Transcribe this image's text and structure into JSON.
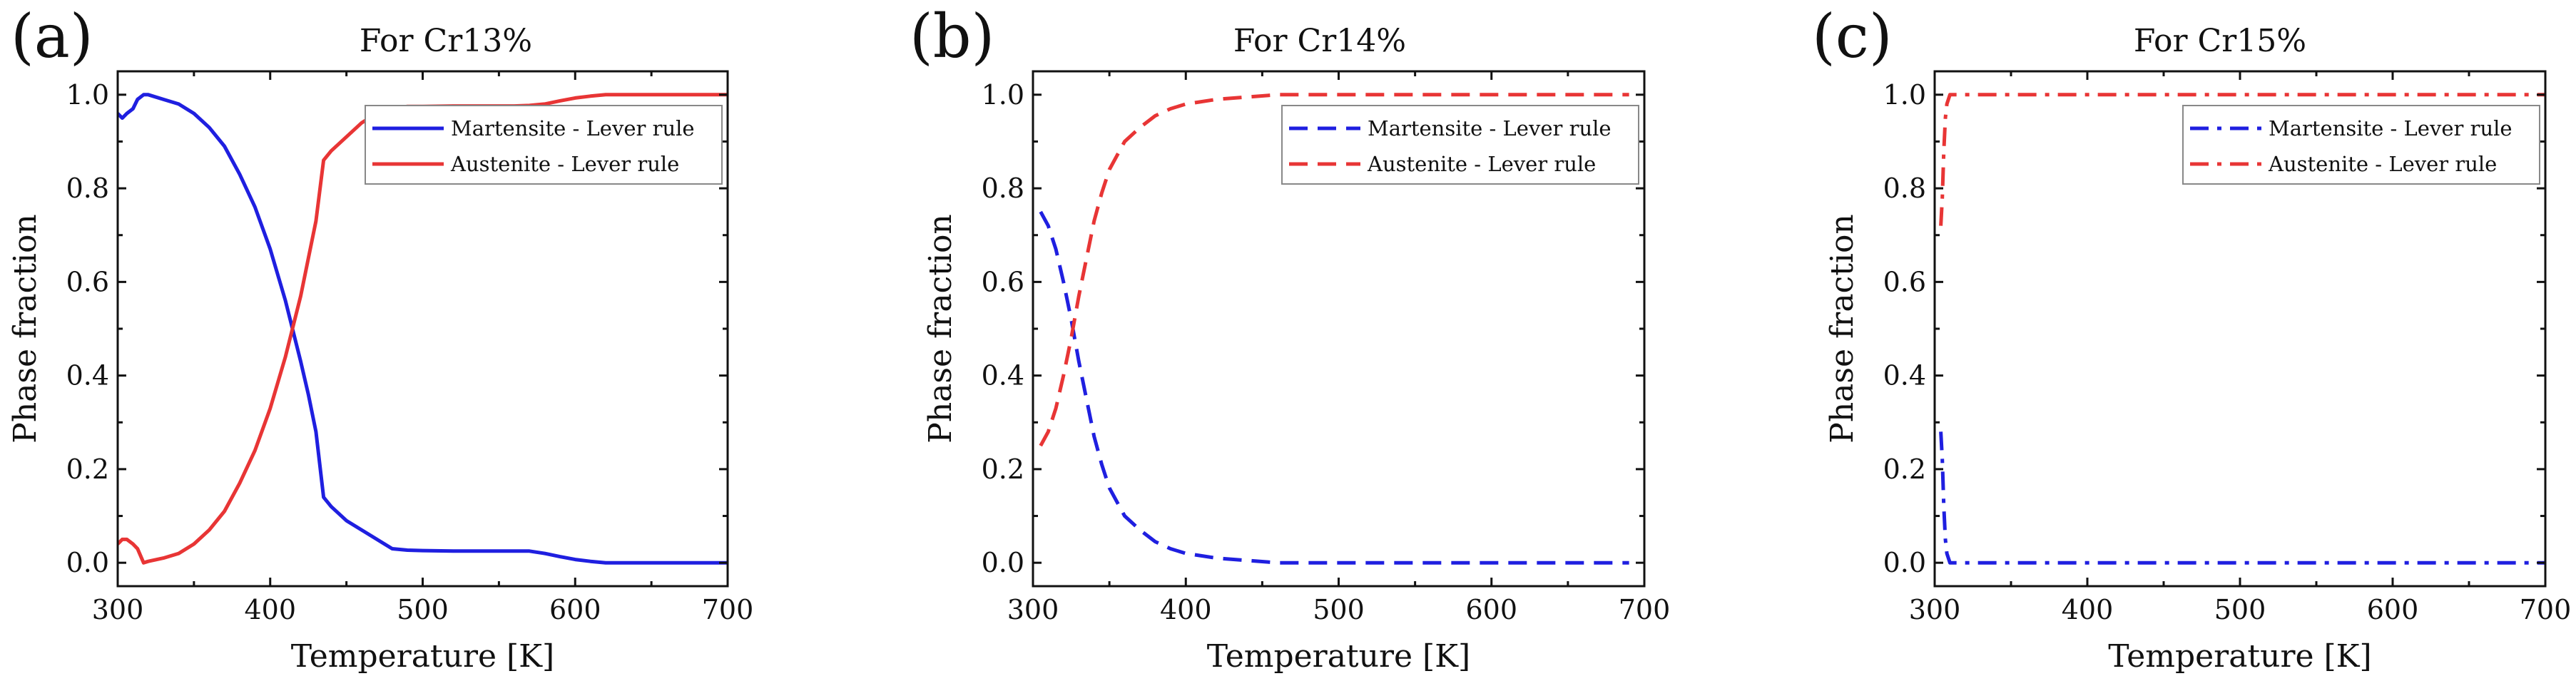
{
  "chart_data": [
    {
      "type": "line",
      "panel": "(a)",
      "title": "For Cr13%",
      "xlabel": "Temperature [K]",
      "ylabel": "Phase fraction",
      "xlim": [
        300,
        700
      ],
      "ylim": [
        -0.05,
        1.05
      ],
      "xticks": [
        300,
        400,
        500,
        600,
        700
      ],
      "yticks": [
        0.0,
        0.2,
        0.4,
        0.6,
        0.8,
        1.0
      ],
      "xtick_labels": [
        "300",
        "400",
        "500",
        "600",
        "700"
      ],
      "ytick_labels": [
        "0.0",
        "0.2",
        "0.4",
        "0.6",
        "0.8",
        "1.0"
      ],
      "grid": false,
      "legend": "top-right",
      "series": [
        {
          "name": "Martensite - Lever rule",
          "color": "#1f1fe0",
          "dash": "solid",
          "x": [
            300,
            303,
            306,
            310,
            313,
            317,
            320,
            330,
            340,
            350,
            360,
            370,
            380,
            390,
            400,
            410,
            420,
            425,
            430,
            435,
            440,
            450,
            460,
            470,
            480,
            490,
            500,
            520,
            540,
            560,
            570,
            580,
            590,
            600,
            610,
            620,
            650,
            700
          ],
          "y": [
            0.96,
            0.95,
            0.96,
            0.97,
            0.99,
            1.0,
            1.0,
            0.99,
            0.98,
            0.96,
            0.93,
            0.89,
            0.83,
            0.76,
            0.67,
            0.56,
            0.43,
            0.36,
            0.28,
            0.14,
            0.12,
            0.09,
            0.07,
            0.05,
            0.03,
            0.027,
            0.026,
            0.025,
            0.025,
            0.025,
            0.025,
            0.02,
            0.013,
            0.007,
            0.003,
            0.0,
            0.0,
            0.0
          ]
        },
        {
          "name": "Austenite - Lever rule",
          "color": "#e83535",
          "dash": "solid",
          "x": [
            300,
            303,
            306,
            310,
            313,
            317,
            320,
            330,
            340,
            350,
            360,
            370,
            380,
            390,
            400,
            410,
            420,
            425,
            430,
            435,
            440,
            450,
            460,
            470,
            480,
            490,
            500,
            520,
            540,
            560,
            570,
            580,
            590,
            600,
            610,
            620,
            650,
            700
          ],
          "y": [
            0.04,
            0.05,
            0.05,
            0.04,
            0.03,
            0.0,
            0.003,
            0.01,
            0.02,
            0.04,
            0.07,
            0.11,
            0.17,
            0.24,
            0.33,
            0.44,
            0.57,
            0.65,
            0.73,
            0.86,
            0.88,
            0.91,
            0.94,
            0.96,
            0.97,
            0.975,
            0.975,
            0.976,
            0.976,
            0.976,
            0.977,
            0.98,
            0.987,
            0.993,
            0.997,
            1.0,
            1.0,
            1.0
          ]
        }
      ]
    },
    {
      "type": "line",
      "panel": "(b)",
      "title": "For Cr14%",
      "xlabel": "Temperature [K]",
      "ylabel": "Phase fraction",
      "xlim": [
        300,
        700
      ],
      "ylim": [
        -0.05,
        1.05
      ],
      "xticks": [
        300,
        400,
        500,
        600,
        700
      ],
      "yticks": [
        0.0,
        0.2,
        0.4,
        0.6,
        0.8,
        1.0
      ],
      "xtick_labels": [
        "300",
        "400",
        "500",
        "600",
        "700"
      ],
      "ytick_labels": [
        "0.0",
        "0.2",
        "0.4",
        "0.6",
        "0.8",
        "1.0"
      ],
      "grid": false,
      "legend": "top-right",
      "series": [
        {
          "name": "Martensite - Lever rule",
          "color": "#1f1fe0",
          "dash": "dashed",
          "x": [
            305,
            310,
            315,
            320,
            325,
            330,
            335,
            340,
            345,
            350,
            360,
            370,
            380,
            390,
            400,
            420,
            440,
            460,
            500,
            600,
            690
          ],
          "y": [
            0.75,
            0.72,
            0.67,
            0.6,
            0.52,
            0.43,
            0.35,
            0.27,
            0.21,
            0.16,
            0.1,
            0.07,
            0.045,
            0.03,
            0.02,
            0.01,
            0.005,
            0.0,
            0.0,
            0.0,
            0.0
          ]
        },
        {
          "name": "Austenite - Lever rule",
          "color": "#e83535",
          "dash": "dashed",
          "x": [
            305,
            310,
            315,
            320,
            325,
            330,
            335,
            340,
            345,
            350,
            360,
            370,
            380,
            390,
            400,
            420,
            440,
            460,
            500,
            600,
            690
          ],
          "y": [
            0.25,
            0.28,
            0.33,
            0.4,
            0.48,
            0.57,
            0.65,
            0.73,
            0.79,
            0.84,
            0.9,
            0.93,
            0.955,
            0.97,
            0.98,
            0.99,
            0.995,
            1.0,
            1.0,
            1.0,
            1.0
          ]
        }
      ]
    },
    {
      "type": "line",
      "panel": "(c)",
      "title": "For Cr15%",
      "xlabel": "Temperature [K]",
      "ylabel": "Phase fraction",
      "xlim": [
        300,
        700
      ],
      "ylim": [
        -0.05,
        1.05
      ],
      "xticks": [
        300,
        400,
        500,
        600,
        700
      ],
      "yticks": [
        0.0,
        0.2,
        0.4,
        0.6,
        0.8,
        1.0
      ],
      "xtick_labels": [
        "300",
        "400",
        "500",
        "600",
        "700"
      ],
      "ytick_labels": [
        "0.0",
        "0.2",
        "0.4",
        "0.6",
        "0.8",
        "1.0"
      ],
      "grid": false,
      "legend": "top-right",
      "series": [
        {
          "name": "Martensite - Lever rule",
          "color": "#1f1fe0",
          "dash": "dashdot",
          "x": [
            304,
            305,
            306,
            307,
            308,
            310,
            315,
            330,
            400,
            500,
            600,
            700
          ],
          "y": [
            0.28,
            0.22,
            0.12,
            0.05,
            0.02,
            0.0,
            0.0,
            0.0,
            0.0,
            0.0,
            0.0,
            0.0
          ]
        },
        {
          "name": "Austenite - Lever rule",
          "color": "#e83535",
          "dash": "dashdot",
          "x": [
            304,
            305,
            306,
            307,
            308,
            310,
            315,
            330,
            400,
            500,
            600,
            700
          ],
          "y": [
            0.72,
            0.78,
            0.88,
            0.95,
            0.98,
            1.0,
            1.0,
            1.0,
            1.0,
            1.0,
            1.0,
            1.0
          ]
        }
      ]
    }
  ]
}
